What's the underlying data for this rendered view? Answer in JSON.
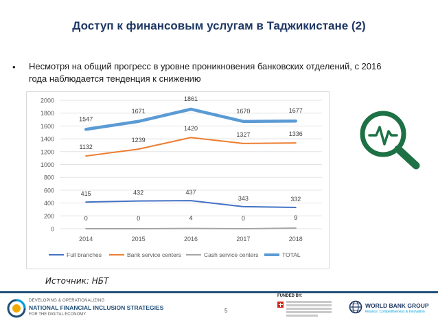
{
  "slide": {
    "title": "Доступ к финансовым услугам в Таджикистане (2)",
    "bullet_symbol": "•",
    "bullet": "Несмотря на общий прогресс в уровне проникновения банковских отделений, с 2016 года наблюдается тенденция к снижению",
    "source": "Источник: НБТ",
    "page_number": "5"
  },
  "footer": {
    "logo_line1": "DEVELOPING & OPERATIONALIZING",
    "logo_line2": "NATIONAL FINANCIAL INCLUSION STRATEGIES",
    "logo_line3": "FOR THE DIGITAL ECONOMY",
    "funded_by": "FUNDED BY:",
    "wb_name": "WORLD BANK GROUP",
    "wb_sub": "Finance, Competitiveness & Innovation"
  },
  "colors": {
    "title": "#1f3864",
    "icon_green": "#1e7145",
    "full_branches": "#4472c4",
    "bank_service_centers": "#ed7d31",
    "cash_service_centers": "#a5a5a5",
    "total": "#5b9bd5"
  },
  "chart_data": {
    "type": "line",
    "title": "",
    "xlabel": "",
    "ylabel": "",
    "categories": [
      "2014",
      "2015",
      "2016",
      "2017",
      "2018"
    ],
    "ylim": [
      0,
      2000
    ],
    "yticks": [
      "0",
      "200",
      "400",
      "600",
      "800",
      "1000",
      "1200",
      "1400",
      "1600",
      "1800",
      "2000"
    ],
    "grid": true,
    "legend_position": "bottom",
    "series": [
      {
        "key": "full",
        "name": "Full branches",
        "values": [
          415,
          432,
          437,
          343,
          332
        ],
        "labels": [
          "415",
          "432",
          "437",
          "343",
          "332"
        ]
      },
      {
        "key": "bank",
        "name": "Bank service centers",
        "values": [
          1132,
          1239,
          1420,
          1327,
          1336
        ],
        "labels": [
          "1132",
          "1239",
          "1420",
          "1327",
          "1336"
        ]
      },
      {
        "key": "cash",
        "name": "Cash service centers",
        "values": [
          0,
          0,
          4,
          0,
          9
        ],
        "labels": [
          "0",
          "0",
          "4",
          "0",
          "9"
        ]
      },
      {
        "key": "total",
        "name": "TOTAL",
        "values": [
          1547,
          1671,
          1861,
          1670,
          1677
        ],
        "labels": [
          "1547",
          "1671",
          "1861",
          "1670",
          "1677"
        ]
      }
    ]
  }
}
